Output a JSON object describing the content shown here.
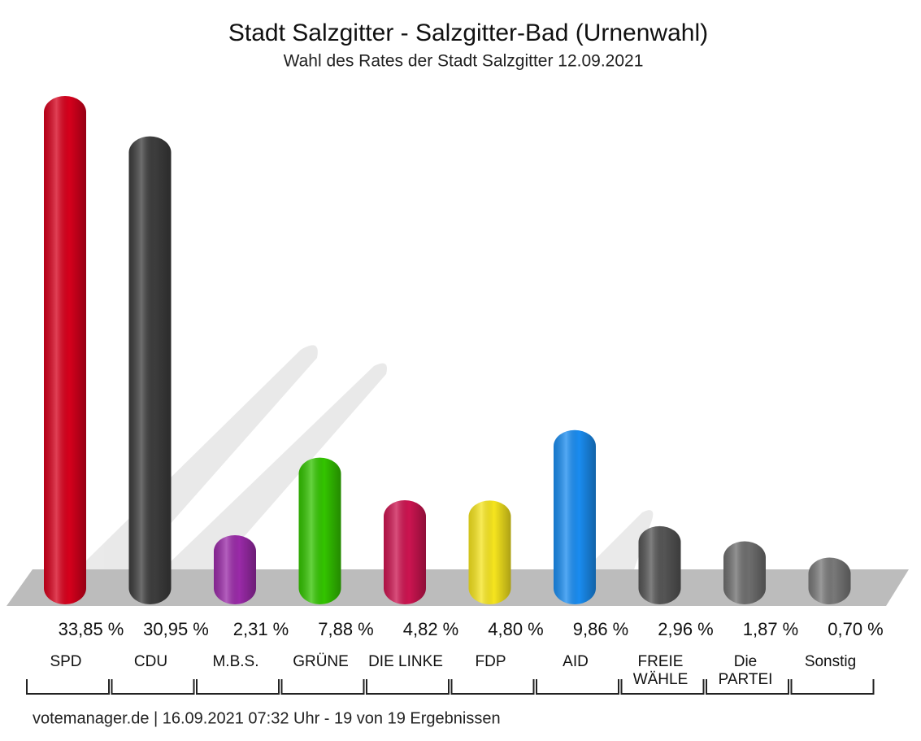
{
  "chart_data": {
    "type": "bar",
    "title": "Stadt Salzgitter - Salzgitter-Bad (Urnenwahl)",
    "subtitle": "Wahl des Rates der Stadt Salzgitter 12.09.2021",
    "categories": [
      "SPD",
      "CDU",
      "M.B.S.",
      "GRÜNE",
      "DIE LINKE",
      "FDP",
      "AID",
      "FREIE WÄHLE",
      "Die PARTEI",
      "Sonstig"
    ],
    "values": [
      33.85,
      30.95,
      2.31,
      7.88,
      4.82,
      4.8,
      9.86,
      2.96,
      1.87,
      0.7
    ],
    "value_labels": [
      "33,85 %",
      "30,95 %",
      "2,31 %",
      "7,88 %",
      "4,82 %",
      "4,80 %",
      "9,86 %",
      "2,96 %",
      "1,87 %",
      "0,70 %"
    ],
    "colors": [
      "#d6001c",
      "#3d3d3d",
      "#9a2aa8",
      "#33c400",
      "#cc1450",
      "#f6e51e",
      "#1a8cf0",
      "#555555",
      "#6e6e6e",
      "#787878"
    ],
    "footer": "votemanager.de | 16.09.2021 07:32 Uhr - 19 von 19 Ergebnissen"
  }
}
